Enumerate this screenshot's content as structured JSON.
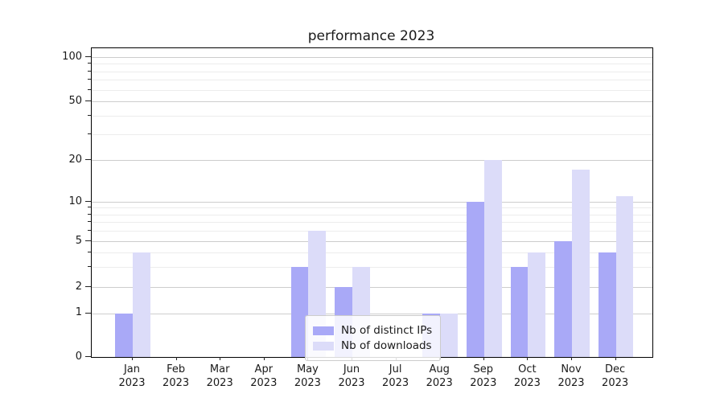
{
  "title": "performance 2023",
  "legend": {
    "items": [
      {
        "label": "Nb of distinct IPs",
        "color": "#a9a9f7"
      },
      {
        "label": "Nb of downloads",
        "color": "#dcdcf9"
      }
    ]
  },
  "y_axis": {
    "major_ticks": [
      0,
      1,
      2,
      5,
      10,
      20,
      50,
      100
    ],
    "minor_ticks": [
      3,
      4,
      6,
      7,
      8,
      9,
      30,
      40,
      60,
      70,
      80,
      90
    ]
  },
  "x_axis": {
    "tick_labels": [
      [
        "Jan",
        "2023"
      ],
      [
        "Feb",
        "2023"
      ],
      [
        "Mar",
        "2023"
      ],
      [
        "Apr",
        "2023"
      ],
      [
        "May",
        "2023"
      ],
      [
        "Jun",
        "2023"
      ],
      [
        "Jul",
        "2023"
      ],
      [
        "Aug",
        "2023"
      ],
      [
        "Sep",
        "2023"
      ],
      [
        "Oct",
        "2023"
      ],
      [
        "Nov",
        "2023"
      ],
      [
        "Dec",
        "2023"
      ]
    ]
  },
  "chart_data": {
    "type": "bar",
    "title": "performance 2023",
    "categories": [
      "Jan 2023",
      "Feb 2023",
      "Mar 2023",
      "Apr 2023",
      "May 2023",
      "Jun 2023",
      "Jul 2023",
      "Aug 2023",
      "Sep 2023",
      "Oct 2023",
      "Nov 2023",
      "Dec 2023"
    ],
    "series": [
      {
        "name": "Nb of distinct IPs",
        "color": "#a9a9f7",
        "values": [
          1,
          0,
          0,
          0,
          3,
          2,
          0,
          1,
          10,
          3,
          5,
          4
        ]
      },
      {
        "name": "Nb of downloads",
        "color": "#dcdcf9",
        "values": [
          4,
          0,
          0,
          0,
          6,
          3,
          0,
          1,
          20,
          4,
          17,
          11
        ]
      }
    ],
    "xlabel": "",
    "ylabel": "",
    "yscale": "symlog (linear 0-1, log above)",
    "ylim": [
      0,
      115
    ],
    "yticks": [
      0,
      1,
      2,
      5,
      10,
      20,
      50,
      100
    ],
    "grid": true,
    "legend_position": "lower center"
  }
}
